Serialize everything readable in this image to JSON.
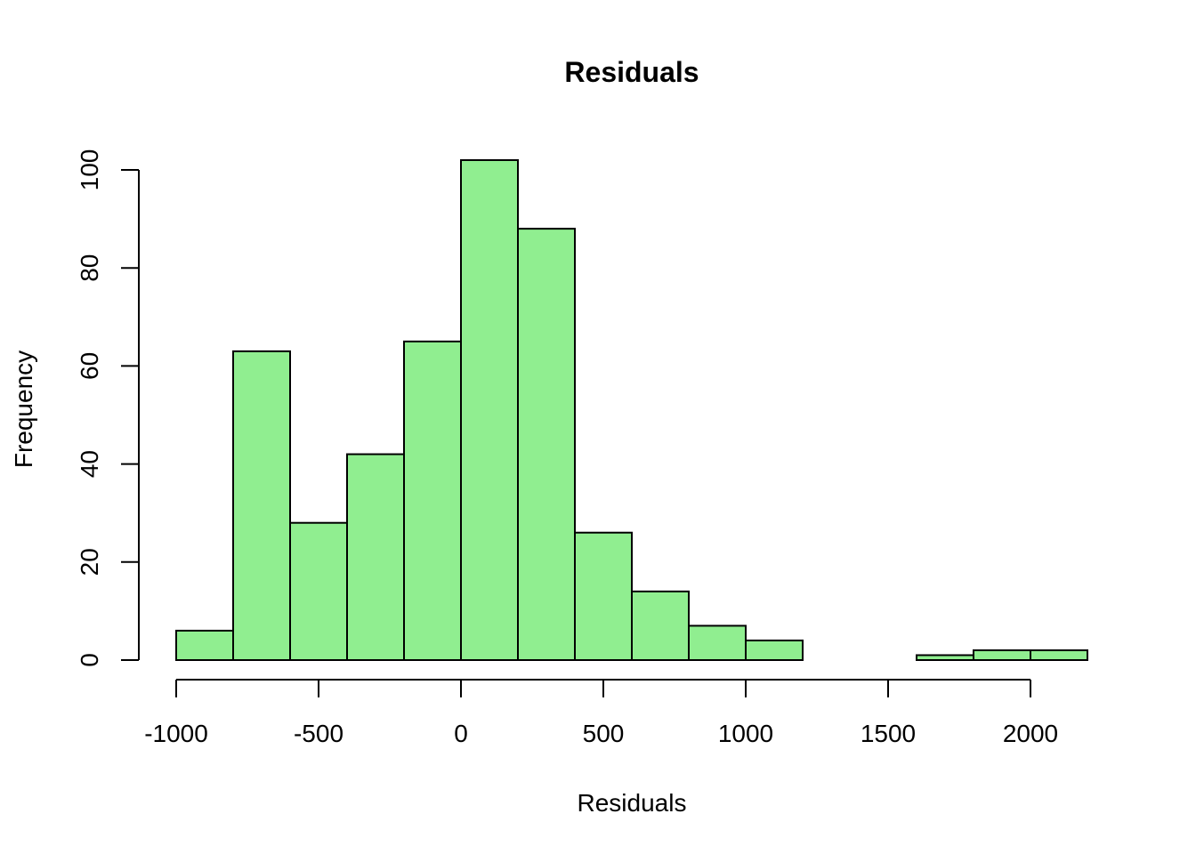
{
  "chart_data": {
    "type": "bar",
    "title": "Residuals",
    "xlabel": "Residuals",
    "ylabel": "Frequency",
    "bar_color": "#90ee90",
    "bins": [
      {
        "start": -1000,
        "end": -800,
        "count": 6
      },
      {
        "start": -800,
        "end": -600,
        "count": 63
      },
      {
        "start": -600,
        "end": -400,
        "count": 28
      },
      {
        "start": -400,
        "end": -200,
        "count": 42
      },
      {
        "start": -200,
        "end": 0,
        "count": 65
      },
      {
        "start": 0,
        "end": 200,
        "count": 102
      },
      {
        "start": 200,
        "end": 400,
        "count": 88
      },
      {
        "start": 400,
        "end": 600,
        "count": 26
      },
      {
        "start": 600,
        "end": 800,
        "count": 14
      },
      {
        "start": 800,
        "end": 1000,
        "count": 7
      },
      {
        "start": 1000,
        "end": 1200,
        "count": 4
      },
      {
        "start": 1200,
        "end": 1400,
        "count": 0
      },
      {
        "start": 1400,
        "end": 1600,
        "count": 0
      },
      {
        "start": 1600,
        "end": 1800,
        "count": 1
      },
      {
        "start": 1800,
        "end": 2000,
        "count": 2
      },
      {
        "start": 2000,
        "end": 2200,
        "count": 2
      }
    ],
    "x_ticks": [
      -1000,
      -500,
      0,
      500,
      1000,
      1500,
      2000
    ],
    "x_tick_labels": [
      "-1000",
      "-500",
      "0",
      "500",
      "1000",
      "1500",
      "2000"
    ],
    "y_ticks": [
      0,
      20,
      40,
      60,
      80,
      100
    ],
    "y_tick_labels": [
      "0",
      "20",
      "40",
      "60",
      "80",
      "100"
    ],
    "xlim": [
      -1000,
      2200
    ],
    "ylim": [
      0,
      102
    ],
    "grid": false,
    "legend": "none"
  }
}
